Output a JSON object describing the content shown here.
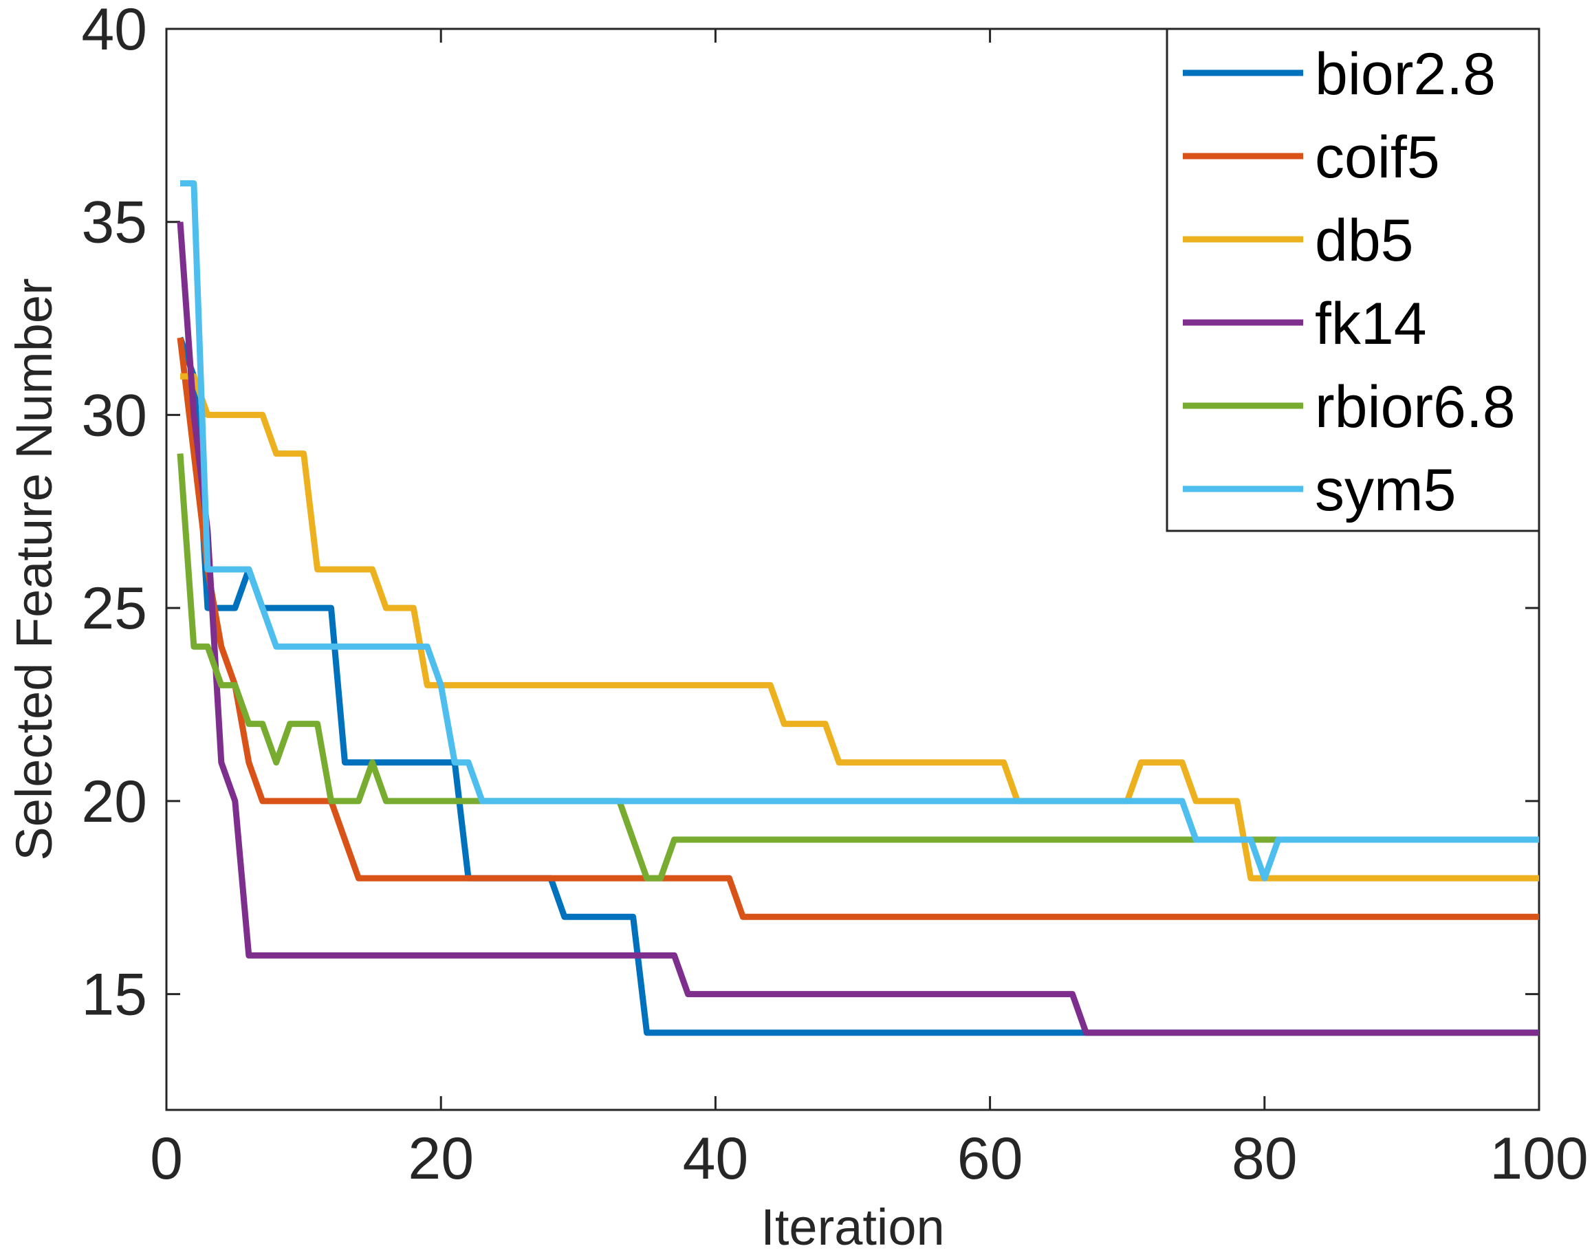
{
  "chart_data": {
    "type": "line",
    "title": "",
    "xlabel": "Iteration",
    "ylabel": "Selected Feature Number",
    "xlim": [
      0,
      100
    ],
    "ylim": [
      12,
      40
    ],
    "xticks": [
      0,
      20,
      40,
      60,
      80,
      100
    ],
    "xtick_labels": [
      "0",
      "20",
      "40",
      "60",
      "80",
      "100"
    ],
    "yticks": [
      15,
      20,
      25,
      30,
      35,
      40
    ],
    "ytick_labels": [
      "15",
      "20",
      "25",
      "30",
      "35",
      "40"
    ],
    "grid": false,
    "legend_position": "top-right",
    "series": [
      {
        "name": "bior2.8",
        "color": "#0072BD",
        "x": [
          1,
          2,
          3,
          4,
          5,
          6,
          7,
          12,
          13,
          21,
          22,
          28,
          29,
          34,
          35,
          66,
          67,
          100
        ],
        "y": [
          32,
          31,
          25,
          25,
          25,
          26,
          25,
          25,
          21,
          21,
          18,
          18,
          17,
          17,
          14,
          14,
          14,
          14
        ]
      },
      {
        "name": "coif5",
        "color": "#D95319",
        "x": [
          1,
          2,
          3,
          4,
          5,
          6,
          7,
          12,
          14,
          41,
          42,
          100
        ],
        "y": [
          32,
          29,
          26,
          24,
          23,
          21,
          20,
          20,
          18,
          18,
          17,
          17
        ]
      },
      {
        "name": "db5",
        "color": "#EDB120",
        "x": [
          1,
          2,
          3,
          7,
          8,
          10,
          11,
          15,
          16,
          18,
          19,
          44,
          45,
          48,
          49,
          61,
          62,
          70,
          71,
          74,
          75,
          78,
          79,
          100
        ],
        "y": [
          31,
          31,
          30,
          30,
          29,
          29,
          26,
          26,
          25,
          25,
          23,
          23,
          22,
          22,
          21,
          21,
          20,
          20,
          21,
          21,
          20,
          20,
          18,
          18
        ]
      },
      {
        "name": "fk14",
        "color": "#7E2F8E",
        "x": [
          1,
          2,
          3,
          4,
          5,
          6,
          37,
          38,
          66,
          67,
          100
        ],
        "y": [
          35,
          30,
          27,
          21,
          20,
          16,
          16,
          15,
          15,
          14,
          14
        ]
      },
      {
        "name": "rbior6.8",
        "color": "#77AC30",
        "x": [
          1,
          2,
          3,
          4,
          5,
          6,
          7,
          8,
          9,
          10,
          11,
          12,
          13,
          14,
          15,
          16,
          33,
          35,
          36,
          37,
          100
        ],
        "y": [
          29,
          24,
          24,
          23,
          23,
          22,
          22,
          21,
          22,
          22,
          22,
          20,
          20,
          20,
          21,
          20,
          20,
          18,
          18,
          19,
          19
        ]
      },
      {
        "name": "sym5",
        "color": "#4DBEEE",
        "x": [
          1,
          2,
          3,
          6,
          8,
          19,
          20,
          21,
          22,
          23,
          74,
          75,
          79,
          80,
          81,
          100
        ],
        "y": [
          36,
          36,
          26,
          26,
          24,
          24,
          23,
          21,
          21,
          20,
          20,
          19,
          19,
          18,
          19,
          19
        ]
      }
    ]
  }
}
